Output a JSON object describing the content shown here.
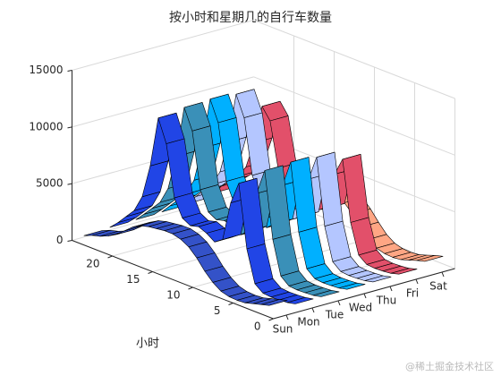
{
  "chart_data": {
    "type": "ribbon3d",
    "title": "按小时和星期几的自行车数量",
    "xlabel": "小时",
    "x": [
      1,
      2,
      3,
      4,
      5,
      6,
      7,
      8,
      9,
      10,
      11,
      12,
      13,
      14,
      15,
      16,
      17,
      18,
      19,
      20,
      21,
      22,
      23,
      24
    ],
    "xlim": [
      0,
      25
    ],
    "xticks": [
      0,
      5,
      10,
      15,
      20
    ],
    "zlim": [
      0,
      15000
    ],
    "zticks": [
      0,
      5000,
      10000,
      15000
    ],
    "grid": true,
    "categories": [
      "Sun",
      "Mon",
      "Tue",
      "Wed",
      "Thu",
      "Fri",
      "Sat"
    ],
    "series": [
      {
        "name": "Sun",
        "color": "#3452c8",
        "values": [
          800,
          600,
          400,
          200,
          150,
          200,
          400,
          900,
          1600,
          2500,
          3200,
          3600,
          3800,
          3800,
          3700,
          3600,
          3400,
          3000,
          2400,
          1800,
          1400,
          1100,
          900,
          600
        ]
      },
      {
        "name": "Mon",
        "color": "#2145e6",
        "values": [
          300,
          150,
          100,
          80,
          150,
          700,
          3500,
          9000,
          7000,
          3500,
          3000,
          3500,
          3800,
          3600,
          4000,
          5500,
          10000,
          12000,
          7500,
          4500,
          3000,
          2200,
          1400,
          700
        ]
      },
      {
        "name": "Tue",
        "color": "#3a90b8",
        "values": [
          300,
          150,
          100,
          80,
          150,
          750,
          3700,
          9500,
          7200,
          3600,
          3000,
          3400,
          3700,
          3500,
          3900,
          5600,
          10500,
          12300,
          7700,
          4600,
          3100,
          2300,
          1500,
          750
        ]
      },
      {
        "name": "Wed",
        "color": "#00b0ff",
        "values": [
          320,
          160,
          100,
          80,
          160,
          760,
          3700,
          9600,
          7300,
          3600,
          3000,
          3400,
          3700,
          3500,
          4000,
          5700,
          10600,
          12400,
          7800,
          4700,
          3200,
          2400,
          1600,
          800
        ]
      },
      {
        "name": "Thu",
        "color": "#b4c6ff",
        "values": [
          350,
          170,
          110,
          90,
          160,
          750,
          3600,
          9400,
          7200,
          3600,
          3100,
          3500,
          3800,
          3600,
          4000,
          5600,
          10400,
          12200,
          7700,
          4800,
          3400,
          2600,
          1800,
          900
        ]
      },
      {
        "name": "Fri",
        "color": "#e2506a",
        "values": [
          400,
          200,
          120,
          90,
          150,
          700,
          3300,
          8600,
          7000,
          3700,
          3300,
          3800,
          4100,
          3900,
          4300,
          5600,
          9500,
          10500,
          7000,
          4600,
          3500,
          2800,
          2100,
          1200
        ]
      },
      {
        "name": "Sat",
        "color": "#ffa684",
        "values": [
          900,
          700,
          450,
          220,
          150,
          200,
          400,
          900,
          1700,
          2600,
          3300,
          3700,
          3900,
          3900,
          3800,
          3700,
          3500,
          3100,
          2500,
          1900,
          1500,
          1200,
          1000,
          700
        ]
      }
    ]
  },
  "watermark": "@稀土掘金技术社区"
}
